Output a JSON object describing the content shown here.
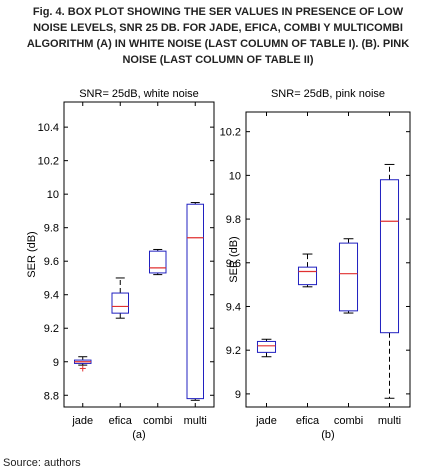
{
  "figure": {
    "caption_lines": [
      "Fig. 4. BOX PLOT SHOWING THE SER VALUES IN PRESENCE OF LOW",
      "NOISE LEVELS, SNR 25 DB. FOR JADE, EFICA, COMBI Y MULTICOMBI",
      "ALGORITHM (A) IN WHITE NOISE (LAST COLUMN OF TABLE I).  (B). PINK",
      "NOISE (LAST COLUMN OF TABLE II)"
    ],
    "source": "Source: authors"
  },
  "chart_data": [
    {
      "type": "box",
      "title": "SNR= 25dB, white noise",
      "ylabel": "SER (dB)",
      "panel_label": "(a)",
      "ylim": [
        8.73,
        10.55
      ],
      "yticks": [
        8.8,
        9,
        9.2,
        9.4,
        9.6,
        9.8,
        10,
        10.2,
        10.4
      ],
      "ytick_labels": [
        "8.8",
        "9",
        "9.2",
        "9.4",
        "9.6",
        "9.8",
        "10",
        "10.2",
        "10.4"
      ],
      "categories": [
        "jade",
        "efica",
        "combi",
        "multi"
      ],
      "boxes": [
        {
          "whisker_low": 8.98,
          "q1": 8.99,
          "median": 9.0,
          "q3": 9.01,
          "whisker_high": 9.03,
          "outliers": [
            8.96
          ]
        },
        {
          "whisker_low": 9.26,
          "q1": 9.29,
          "median": 9.33,
          "q3": 9.41,
          "whisker_high": 9.5,
          "outliers": []
        },
        {
          "whisker_low": 9.52,
          "q1": 9.53,
          "median": 9.56,
          "q3": 9.66,
          "whisker_high": 9.67,
          "outliers": []
        },
        {
          "whisker_low": 8.77,
          "q1": 8.78,
          "median": 9.74,
          "q3": 9.94,
          "whisker_high": 9.95,
          "outliers": []
        }
      ]
    },
    {
      "type": "box",
      "title": "SNR= 25dB, pink noise",
      "ylabel": "SER (dB)",
      "panel_label": "(b)",
      "ylim": [
        8.94,
        10.29
      ],
      "yticks": [
        9,
        9.2,
        9.4,
        9.6,
        9.8,
        10,
        10.2
      ],
      "ytick_labels": [
        "9",
        "9.2",
        "9.4",
        "9.6",
        "9.8",
        "10",
        "10.2"
      ],
      "categories": [
        "jade",
        "efica",
        "combi",
        "multi"
      ],
      "boxes": [
        {
          "whisker_low": 9.17,
          "q1": 9.19,
          "median": 9.22,
          "q3": 9.24,
          "whisker_high": 9.25,
          "outliers": []
        },
        {
          "whisker_low": 9.49,
          "q1": 9.5,
          "median": 9.56,
          "q3": 9.58,
          "whisker_high": 9.64,
          "outliers": []
        },
        {
          "whisker_low": 9.37,
          "q1": 9.38,
          "median": 9.55,
          "q3": 9.69,
          "whisker_high": 9.71,
          "outliers": []
        },
        {
          "whisker_low": 8.98,
          "q1": 9.28,
          "median": 9.79,
          "q3": 9.98,
          "whisker_high": 10.05,
          "outliers": []
        }
      ]
    }
  ],
  "colors": {
    "box": "#2020c0",
    "median": "#e03030",
    "whisker": "#000000",
    "outlier": "#e03030",
    "axis": "#000000"
  }
}
